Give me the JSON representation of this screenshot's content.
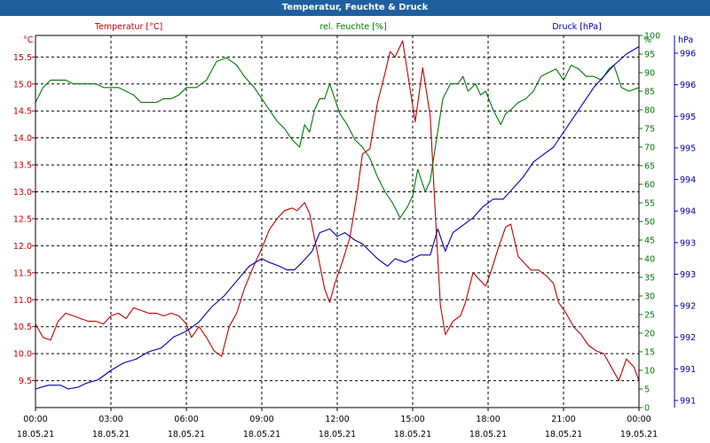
{
  "window": {
    "title": "Temperatur, Feuchte & Druck"
  },
  "colors": {
    "temperature": "#c00000",
    "humidity": "#007a00",
    "pressure": "#0000b0",
    "axis": "#000000",
    "grid": "#000000",
    "background": "#ffffff",
    "titlebar": "#1f5f9e"
  },
  "chart_data": {
    "type": "line",
    "grid": true,
    "x_ticks": [
      {
        "time": "00:00",
        "date": "18.05.21"
      },
      {
        "time": "03:00",
        "date": "18.05.21"
      },
      {
        "time": "06:00",
        "date": "18.05.21"
      },
      {
        "time": "09:00",
        "date": "18.05.21"
      },
      {
        "time": "12:00",
        "date": "18.05.21"
      },
      {
        "time": "15:00",
        "date": "18.05.21"
      },
      {
        "time": "18:00",
        "date": "18.05.21"
      },
      {
        "time": "21:00",
        "date": "18.05.21"
      },
      {
        "time": "00:00",
        "date": "19.05.21"
      }
    ],
    "x_unit": "hours",
    "xlim": [
      0,
      24
    ],
    "axes": {
      "left": {
        "label": "°C",
        "ylim": [
          9.0,
          15.9
        ],
        "ticks": [
          "9.5",
          "10.0",
          "10.5",
          "11.0",
          "11.5",
          "12.0",
          "12.5",
          "13.0",
          "13.5",
          "14.0",
          "14.5",
          "15.0",
          "15.5"
        ],
        "tick_values": [
          9.5,
          10.0,
          10.5,
          11.0,
          11.5,
          12.0,
          12.5,
          13.0,
          13.5,
          14.0,
          14.5,
          15.0,
          15.5
        ]
      },
      "middle": {
        "label": "%",
        "ylim": [
          0,
          100
        ],
        "ticks": [
          "0",
          "5",
          "10",
          "15",
          "20",
          "25",
          "30",
          "35",
          "40",
          "45",
          "50",
          "55",
          "60",
          "65",
          "70",
          "75",
          "80",
          "85",
          "90",
          "95",
          "100"
        ],
        "tick_values": [
          0,
          5,
          10,
          15,
          20,
          25,
          30,
          35,
          40,
          45,
          50,
          55,
          60,
          65,
          70,
          75,
          80,
          85,
          90,
          95,
          100
        ]
      },
      "right": {
        "label": "hPa",
        "ticks": [
          "991",
          "991",
          "992",
          "992",
          "993",
          "993",
          "994",
          "994",
          "995",
          "995",
          "996",
          "996"
        ]
      }
    },
    "series": [
      {
        "name": "Temperatur [°C]",
        "axis": "left",
        "points": [
          [
            0,
            10.55
          ],
          [
            0.3,
            10.3
          ],
          [
            0.6,
            10.25
          ],
          [
            0.9,
            10.6
          ],
          [
            1.2,
            10.75
          ],
          [
            1.5,
            10.7
          ],
          [
            1.8,
            10.65
          ],
          [
            2.1,
            10.6
          ],
          [
            2.4,
            10.6
          ],
          [
            2.7,
            10.55
          ],
          [
            3.0,
            10.7
          ],
          [
            3.3,
            10.75
          ],
          [
            3.6,
            10.65
          ],
          [
            3.9,
            10.85
          ],
          [
            4.2,
            10.8
          ],
          [
            4.5,
            10.75
          ],
          [
            4.8,
            10.75
          ],
          [
            5.1,
            10.7
          ],
          [
            5.4,
            10.75
          ],
          [
            5.7,
            10.7
          ],
          [
            6.0,
            10.55
          ],
          [
            6.2,
            10.3
          ],
          [
            6.5,
            10.5
          ],
          [
            6.8,
            10.3
          ],
          [
            7.1,
            10.05
          ],
          [
            7.4,
            9.95
          ],
          [
            7.7,
            10.5
          ],
          [
            8.0,
            10.75
          ],
          [
            8.3,
            11.2
          ],
          [
            8.7,
            11.65
          ],
          [
            9.0,
            11.95
          ],
          [
            9.3,
            12.3
          ],
          [
            9.6,
            12.5
          ],
          [
            9.9,
            12.65
          ],
          [
            10.2,
            12.7
          ],
          [
            10.4,
            12.65
          ],
          [
            10.7,
            12.8
          ],
          [
            10.9,
            12.6
          ],
          [
            11.2,
            11.9
          ],
          [
            11.5,
            11.2
          ],
          [
            11.7,
            10.95
          ],
          [
            11.9,
            11.3
          ],
          [
            12.2,
            11.7
          ],
          [
            12.5,
            12.15
          ],
          [
            12.8,
            13.0
          ],
          [
            13.0,
            13.7
          ],
          [
            13.3,
            13.8
          ],
          [
            13.6,
            14.65
          ],
          [
            13.9,
            15.2
          ],
          [
            14.1,
            15.6
          ],
          [
            14.3,
            15.5
          ],
          [
            14.6,
            15.8
          ],
          [
            14.8,
            15.2
          ],
          [
            15.1,
            14.3
          ],
          [
            15.4,
            15.3
          ],
          [
            15.7,
            14.4
          ],
          [
            15.9,
            12.6
          ],
          [
            16.1,
            10.9
          ],
          [
            16.3,
            10.35
          ],
          [
            16.6,
            10.6
          ],
          [
            16.9,
            10.7
          ],
          [
            17.1,
            10.95
          ],
          [
            17.4,
            11.5
          ],
          [
            17.7,
            11.35
          ],
          [
            17.9,
            11.25
          ],
          [
            18.1,
            11.5
          ],
          [
            18.4,
            11.95
          ],
          [
            18.7,
            12.35
          ],
          [
            18.9,
            12.4
          ],
          [
            19.2,
            11.8
          ],
          [
            19.4,
            11.7
          ],
          [
            19.7,
            11.55
          ],
          [
            20.0,
            11.55
          ],
          [
            20.3,
            11.45
          ],
          [
            20.6,
            11.3
          ],
          [
            20.8,
            10.95
          ],
          [
            21.1,
            10.75
          ],
          [
            21.4,
            10.5
          ],
          [
            21.7,
            10.35
          ],
          [
            22.0,
            10.15
          ],
          [
            22.3,
            10.05
          ],
          [
            22.6,
            10.0
          ],
          [
            22.9,
            9.75
          ],
          [
            23.2,
            9.5
          ],
          [
            23.5,
            9.9
          ],
          [
            23.8,
            9.75
          ],
          [
            24,
            9.5
          ]
        ]
      },
      {
        "name": "rel. Feuchte [%]",
        "axis": "middle",
        "points": [
          [
            0,
            82
          ],
          [
            0.3,
            86
          ],
          [
            0.6,
            88
          ],
          [
            0.9,
            88
          ],
          [
            1.2,
            88
          ],
          [
            1.5,
            87
          ],
          [
            1.8,
            87
          ],
          [
            2.1,
            87
          ],
          [
            2.4,
            87
          ],
          [
            2.7,
            86
          ],
          [
            3.0,
            86
          ],
          [
            3.3,
            86
          ],
          [
            3.6,
            85
          ],
          [
            3.9,
            84
          ],
          [
            4.2,
            82
          ],
          [
            4.5,
            82
          ],
          [
            4.8,
            82
          ],
          [
            5.1,
            83
          ],
          [
            5.4,
            83
          ],
          [
            5.7,
            84
          ],
          [
            6.0,
            86
          ],
          [
            6.4,
            86
          ],
          [
            6.8,
            88
          ],
          [
            7.2,
            93
          ],
          [
            7.6,
            94
          ],
          [
            8.0,
            92
          ],
          [
            8.3,
            89
          ],
          [
            8.7,
            86
          ],
          [
            9.0,
            83
          ],
          [
            9.3,
            80
          ],
          [
            9.6,
            77
          ],
          [
            9.9,
            75
          ],
          [
            10.2,
            72
          ],
          [
            10.5,
            70
          ],
          [
            10.7,
            76
          ],
          [
            10.9,
            74
          ],
          [
            11.1,
            80
          ],
          [
            11.3,
            83
          ],
          [
            11.5,
            83
          ],
          [
            11.7,
            87
          ],
          [
            11.9,
            83
          ],
          [
            12.1,
            79
          ],
          [
            12.4,
            76
          ],
          [
            12.7,
            72
          ],
          [
            13.0,
            70
          ],
          [
            13.3,
            67
          ],
          [
            13.6,
            62
          ],
          [
            13.9,
            58
          ],
          [
            14.2,
            55
          ],
          [
            14.5,
            51
          ],
          [
            14.8,
            54
          ],
          [
            15.0,
            57
          ],
          [
            15.2,
            64
          ],
          [
            15.5,
            58
          ],
          [
            15.7,
            61
          ],
          [
            15.9,
            70
          ],
          [
            16.2,
            83
          ],
          [
            16.5,
            87
          ],
          [
            16.8,
            87
          ],
          [
            17.0,
            89
          ],
          [
            17.2,
            85
          ],
          [
            17.5,
            87
          ],
          [
            17.7,
            84
          ],
          [
            17.9,
            85
          ],
          [
            18.2,
            80
          ],
          [
            18.5,
            76
          ],
          [
            18.7,
            79
          ],
          [
            18.9,
            80
          ],
          [
            19.2,
            82
          ],
          [
            19.5,
            83
          ],
          [
            19.8,
            85
          ],
          [
            20.1,
            89
          ],
          [
            20.4,
            90
          ],
          [
            20.7,
            91
          ],
          [
            21.0,
            88
          ],
          [
            21.3,
            92
          ],
          [
            21.6,
            91
          ],
          [
            21.9,
            89
          ],
          [
            22.2,
            89
          ],
          [
            22.5,
            88
          ],
          [
            22.8,
            91
          ],
          [
            23.0,
            92
          ],
          [
            23.3,
            86
          ],
          [
            23.6,
            85
          ],
          [
            24,
            86
          ]
        ]
      },
      {
        "name": "Druck [hPa]",
        "axis": "right",
        "points": [
          [
            0,
            5
          ],
          [
            0.5,
            6
          ],
          [
            1.0,
            6
          ],
          [
            1.3,
            5
          ],
          [
            1.7,
            5.5
          ],
          [
            2.0,
            6.5
          ],
          [
            2.5,
            7.5
          ],
          [
            3.0,
            10
          ],
          [
            3.5,
            12
          ],
          [
            4.0,
            13
          ],
          [
            4.5,
            15
          ],
          [
            5.0,
            16
          ],
          [
            5.5,
            19
          ],
          [
            6.0,
            20.5
          ],
          [
            6.5,
            23
          ],
          [
            7.0,
            27
          ],
          [
            7.5,
            30
          ],
          [
            8.0,
            34
          ],
          [
            8.5,
            38
          ],
          [
            9.0,
            40
          ],
          [
            9.3,
            39
          ],
          [
            9.7,
            38
          ],
          [
            10.0,
            37
          ],
          [
            10.3,
            37
          ],
          [
            10.6,
            39
          ],
          [
            11.0,
            42
          ],
          [
            11.3,
            47
          ],
          [
            11.7,
            48
          ],
          [
            12.0,
            46
          ],
          [
            12.3,
            47
          ],
          [
            12.7,
            45
          ],
          [
            13.0,
            44
          ],
          [
            13.3,
            42
          ],
          [
            13.6,
            40
          ],
          [
            14.0,
            38
          ],
          [
            14.3,
            40
          ],
          [
            14.7,
            39
          ],
          [
            15.0,
            40
          ],
          [
            15.3,
            41
          ],
          [
            15.7,
            41
          ],
          [
            16.0,
            48
          ],
          [
            16.3,
            42
          ],
          [
            16.6,
            47
          ],
          [
            17.0,
            49
          ],
          [
            17.4,
            51
          ],
          [
            17.8,
            54
          ],
          [
            18.2,
            56
          ],
          [
            18.6,
            56
          ],
          [
            19.0,
            59
          ],
          [
            19.4,
            62
          ],
          [
            19.8,
            66
          ],
          [
            20.2,
            68
          ],
          [
            20.6,
            70
          ],
          [
            21.0,
            74
          ],
          [
            21.4,
            78
          ],
          [
            21.8,
            82
          ],
          [
            22.2,
            86
          ],
          [
            22.6,
            89
          ],
          [
            23.0,
            92
          ],
          [
            23.5,
            95
          ],
          [
            24,
            97
          ]
        ]
      }
    ],
    "legend": {
      "temperature": "Temperatur [°C]",
      "humidity": "rel. Feuchte [%]",
      "pressure": "Druck [hPa]"
    }
  }
}
